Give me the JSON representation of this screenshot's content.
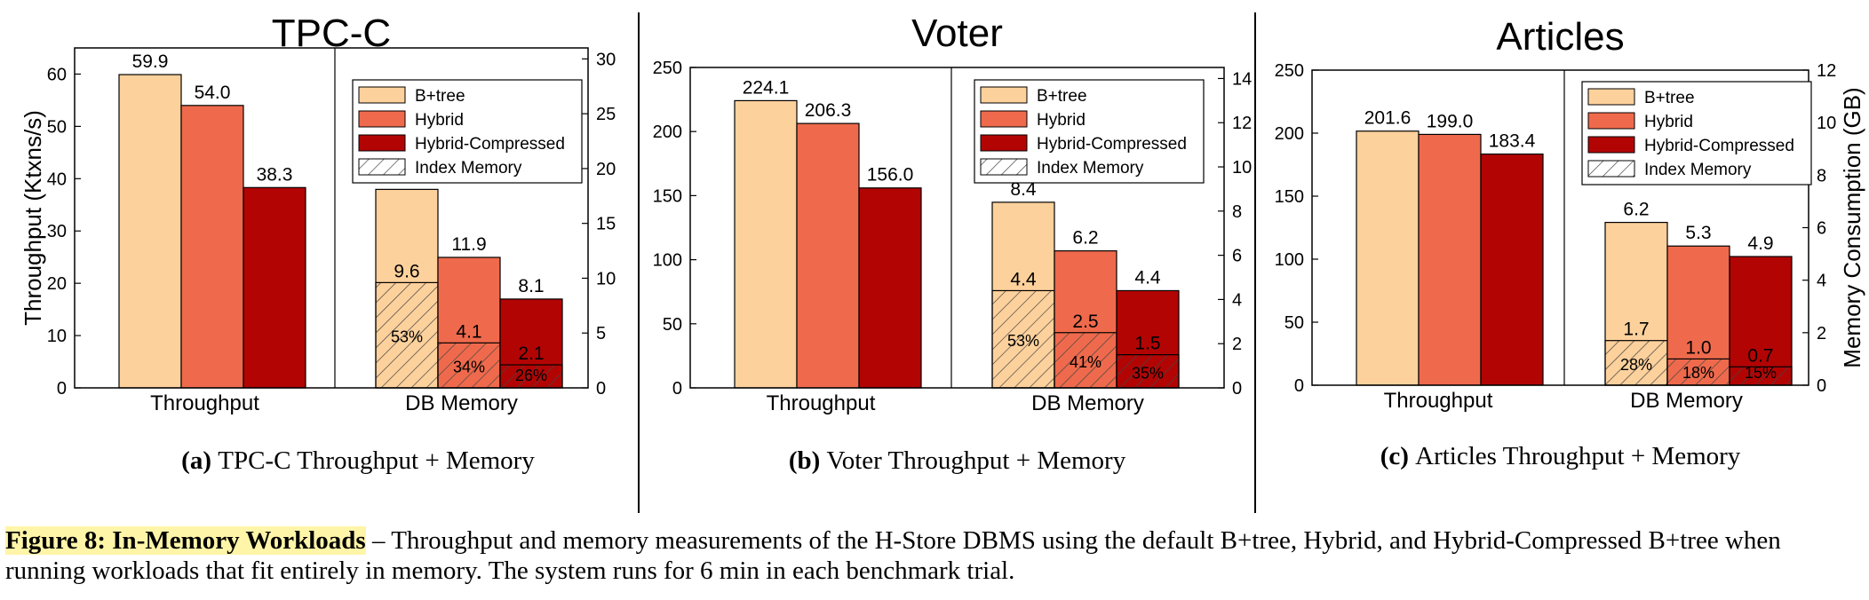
{
  "legend": {
    "btree": "B+tree",
    "hybrid": "Hybrid",
    "compressed": "Hybrid-Compressed",
    "index_memory": "Index Memory"
  },
  "colors": {
    "btree": "#fdd19c",
    "hybrid": "#ef6a4c",
    "compressed": "#b30404"
  },
  "chart_data": [
    {
      "type": "bar",
      "title": "TPC-C",
      "caption_letter": "(a)",
      "caption_text": "TPC-C Throughput + Memory",
      "categories": [
        "Throughput",
        "DB Memory"
      ],
      "ylabel_left": "Throughput (Ktxns/s)",
      "ylabel_right": "",
      "ylim_left": [
        0,
        65
      ],
      "yticks_left": [
        0,
        10,
        20,
        30,
        40,
        50,
        60
      ],
      "ylim_right": [
        0,
        31
      ],
      "yticks_right": [
        0,
        5,
        10,
        15,
        20,
        25,
        30
      ],
      "throughput": [
        59.9,
        54.0,
        38.3
      ],
      "throughput_labels": [
        "59.9",
        "54.0",
        "38.3"
      ],
      "memory": [
        18.1,
        11.9,
        8.1
      ],
      "memory_labels": [
        "18.1",
        "11.9",
        "8.1"
      ],
      "index_memory": [
        9.6,
        4.1,
        2.1
      ],
      "index_memory_labels": [
        "9.6",
        "4.1",
        "2.1"
      ],
      "index_percent": [
        "53%",
        "34%",
        "26%"
      ]
    },
    {
      "type": "bar",
      "title": "Voter",
      "caption_letter": "(b)",
      "caption_text": "Voter Throughput + Memory",
      "categories": [
        "Throughput",
        "DB Memory"
      ],
      "ylabel_left": "",
      "ylabel_right": "",
      "ylim_left": [
        0,
        250
      ],
      "yticks_left": [
        0,
        50,
        100,
        150,
        200,
        250
      ],
      "ylim_right": [
        0,
        14.5
      ],
      "yticks_right": [
        0,
        2,
        4,
        6,
        8,
        10,
        12,
        14
      ],
      "throughput": [
        224.1,
        206.3,
        156.0
      ],
      "throughput_labels": [
        "224.1",
        "206.3",
        "156.0"
      ],
      "memory": [
        8.4,
        6.2,
        4.4
      ],
      "memory_labels": [
        "8.4",
        "6.2",
        "4.4"
      ],
      "index_memory": [
        4.4,
        2.5,
        1.5
      ],
      "index_memory_labels": [
        "4.4",
        "2.5",
        "1.5"
      ],
      "index_percent": [
        "53%",
        "41%",
        "35%"
      ]
    },
    {
      "type": "bar",
      "title": "Articles",
      "caption_letter": "(c)",
      "caption_text": "Articles Throughput + Memory",
      "categories": [
        "Throughput",
        "DB Memory"
      ],
      "ylabel_left": "",
      "ylabel_right": "Memory Consumption (GB)",
      "ylim_left": [
        0,
        250
      ],
      "yticks_left": [
        0,
        50,
        100,
        150,
        200,
        250
      ],
      "ylim_right": [
        0,
        12
      ],
      "yticks_right": [
        0,
        2,
        4,
        6,
        8,
        10,
        12
      ],
      "throughput": [
        201.6,
        199.0,
        183.4
      ],
      "throughput_labels": [
        "201.6",
        "199.0",
        "183.4"
      ],
      "memory": [
        6.2,
        5.3,
        4.9
      ],
      "memory_labels": [
        "6.2",
        "5.3",
        "4.9"
      ],
      "index_memory": [
        1.7,
        1.0,
        0.7
      ],
      "index_memory_labels": [
        "1.7",
        "1.0",
        "0.7"
      ],
      "index_percent": [
        "28%",
        "18%",
        "15%"
      ]
    }
  ],
  "figure_caption": {
    "lead": "Figure 8: In-Memory Workloads",
    "body": " – Throughput and memory measurements of the H-Store DBMS using the default B+tree, Hybrid, and Hybrid-Compressed B+tree when running workloads that fit entirely in memory. The system runs for 6 min in each benchmark trial."
  }
}
